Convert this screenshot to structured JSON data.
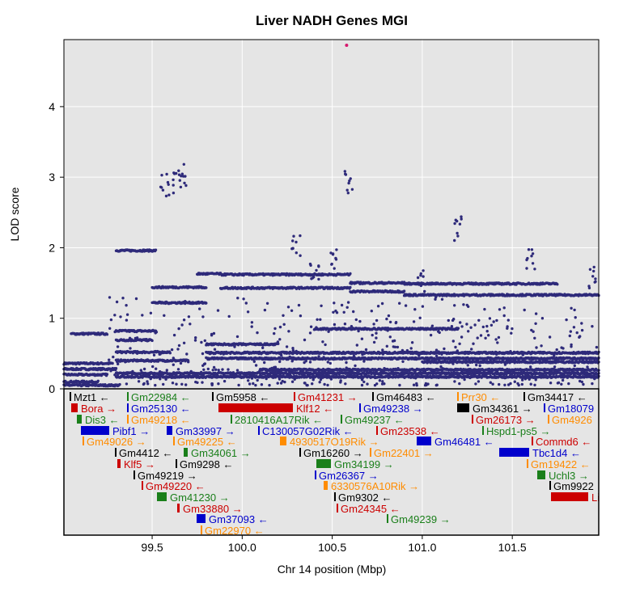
{
  "chart_data": {
    "type": "scatter",
    "title": "Liver NADH Genes MGI",
    "xlabel": "Chr 14 position (Mbp)",
    "ylabel": "LOD score",
    "xlim": [
      99.01,
      101.98
    ],
    "ylim": [
      0,
      4.95
    ],
    "x_ticks": [
      "99.5",
      "100.0",
      "100.5",
      "101.0",
      "101.5"
    ],
    "x_tick_values": [
      99.5,
      100.0,
      100.5,
      101.0,
      101.5
    ],
    "y_ticks": [
      "0",
      "1",
      "2",
      "3",
      "4"
    ],
    "y_tick_values": [
      0,
      1,
      2,
      3,
      4
    ],
    "grid": true,
    "point_color": "#2e2a7a",
    "peak_color": "#d6186e",
    "peak": {
      "x": 100.58,
      "y": 4.87
    },
    "bands": [
      {
        "from": 99.01,
        "to": 99.28,
        "y": 0.36
      },
      {
        "from": 99.01,
        "to": 99.3,
        "y": 0.28
      },
      {
        "from": 99.01,
        "to": 99.25,
        "y": 0.2
      },
      {
        "from": 99.01,
        "to": 99.2,
        "y": 0.1
      },
      {
        "from": 99.01,
        "to": 99.32,
        "y": 0.05
      },
      {
        "from": 99.05,
        "to": 99.25,
        "y": 0.78
      },
      {
        "from": 99.3,
        "to": 99.52,
        "y": 1.96
      },
      {
        "from": 99.3,
        "to": 99.52,
        "y": 0.82
      },
      {
        "from": 99.3,
        "to": 99.5,
        "y": 0.69
      },
      {
        "from": 99.3,
        "to": 99.6,
        "y": 0.52
      },
      {
        "from": 99.3,
        "to": 99.7,
        "y": 0.4
      },
      {
        "from": 99.3,
        "to": 101.98,
        "y": 0.22
      },
      {
        "from": 99.3,
        "to": 101.98,
        "y": 0.17
      },
      {
        "from": 99.5,
        "to": 99.8,
        "y": 1.44
      },
      {
        "from": 99.5,
        "to": 99.8,
        "y": 1.22
      },
      {
        "from": 99.75,
        "to": 99.88,
        "y": 1.63
      },
      {
        "from": 99.88,
        "to": 100.6,
        "y": 1.62
      },
      {
        "from": 99.88,
        "to": 100.6,
        "y": 1.43
      },
      {
        "from": 100.6,
        "to": 100.9,
        "y": 1.5
      },
      {
        "from": 100.9,
        "to": 101.75,
        "y": 1.49
      },
      {
        "from": 100.6,
        "to": 100.9,
        "y": 1.38
      },
      {
        "from": 100.9,
        "to": 101.98,
        "y": 1.33
      },
      {
        "from": 99.8,
        "to": 101.98,
        "y": 0.51
      },
      {
        "from": 99.8,
        "to": 101.98,
        "y": 0.43
      },
      {
        "from": 100.1,
        "to": 101.98,
        "y": 0.27
      },
      {
        "from": 100.4,
        "to": 101.2,
        "y": 0.85
      },
      {
        "from": 99.8,
        "to": 100.2,
        "y": 0.63
      },
      {
        "from": 101.0,
        "to": 101.98,
        "y": 0.38
      }
    ],
    "clusters": [
      {
        "x": 99.57,
        "y": 3.08
      },
      {
        "x": 99.63,
        "y": 3.1
      },
      {
        "x": 99.67,
        "y": 3.2
      },
      {
        "x": 100.59,
        "y": 3.09
      },
      {
        "x": 101.2,
        "y": 2.45
      },
      {
        "x": 100.3,
        "y": 2.2
      },
      {
        "x": 100.5,
        "y": 2.0
      },
      {
        "x": 100.4,
        "y": 1.8
      },
      {
        "x": 101.0,
        "y": 1.7
      },
      {
        "x": 101.6,
        "y": 2.0
      },
      {
        "x": 101.95,
        "y": 1.75
      }
    ]
  },
  "genes": [
    {
      "name": "Mzt1",
      "dir": "←",
      "color": "#000000"
    },
    {
      "name": "Gm22984",
      "dir": "←",
      "color": "#1a7f1a"
    },
    {
      "name": "Gm5958",
      "dir": "←",
      "color": "#000000"
    },
    {
      "name": "Gm41231",
      "dir": "→",
      "color": "#cc0000"
    },
    {
      "name": "Gm46483",
      "dir": "←",
      "color": "#000000"
    },
    {
      "name": "Prr30",
      "dir": "←",
      "color": "#ff8c00"
    },
    {
      "name": "Gm34417",
      "dir": "←",
      "color": "#000000"
    },
    {
      "name": "Bora",
      "dir": "→",
      "color": "#cc0000"
    },
    {
      "name": "Gm25130",
      "dir": "←",
      "color": "#0000cc"
    },
    {
      "name": "Klf12",
      "dir": "←",
      "color": "#cc0000"
    },
    {
      "name": "Gm49238",
      "dir": "→",
      "color": "#0000cc"
    },
    {
      "name": "Gm34361",
      "dir": "→",
      "color": "#000000"
    },
    {
      "name": "Gm18079",
      "dir": "",
      "color": "#0000cc"
    },
    {
      "name": "Dis3",
      "dir": "←",
      "color": "#1a7f1a"
    },
    {
      "name": "Gm49218",
      "dir": "←",
      "color": "#ff8c00"
    },
    {
      "name": "2810416A17Rik",
      "dir": "←",
      "color": "#1a7f1a"
    },
    {
      "name": "Gm49237",
      "dir": "←",
      "color": "#1a7f1a"
    },
    {
      "name": "Gm26173",
      "dir": "→",
      "color": "#cc0000"
    },
    {
      "name": "Gm4926",
      "dir": "",
      "color": "#ff8c00"
    },
    {
      "name": "Pibf1",
      "dir": "→",
      "color": "#0000cc"
    },
    {
      "name": "Gm33997",
      "dir": "→",
      "color": "#0000cc"
    },
    {
      "name": "C130057G02Rik",
      "dir": "←",
      "color": "#0000cc"
    },
    {
      "name": "Gm23538",
      "dir": "←",
      "color": "#cc0000"
    },
    {
      "name": "Hspd1-ps5",
      "dir": "→",
      "color": "#1a7f1a"
    },
    {
      "name": "Gm49026",
      "dir": "→",
      "color": "#ff8c00"
    },
    {
      "name": "Gm49225",
      "dir": "←",
      "color": "#ff8c00"
    },
    {
      "name": "4930517O19Rik",
      "dir": "→",
      "color": "#ff8c00"
    },
    {
      "name": "Gm46481",
      "dir": "←",
      "color": "#0000cc"
    },
    {
      "name": "Commd6",
      "dir": "←",
      "color": "#cc0000"
    },
    {
      "name": "Gm4412",
      "dir": "←",
      "color": "#000000"
    },
    {
      "name": "Gm34061",
      "dir": "→",
      "color": "#1a7f1a"
    },
    {
      "name": "Gm16260",
      "dir": "→",
      "color": "#000000"
    },
    {
      "name": "Gm22401",
      "dir": "→",
      "color": "#ff8c00"
    },
    {
      "name": "Tbc1d4",
      "dir": "←",
      "color": "#0000cc"
    },
    {
      "name": "Klf5",
      "dir": "→",
      "color": "#cc0000"
    },
    {
      "name": "Gm9298",
      "dir": "←",
      "color": "#000000"
    },
    {
      "name": "Gm34199",
      "dir": "→",
      "color": "#1a7f1a"
    },
    {
      "name": "Gm19422",
      "dir": "←",
      "color": "#ff8c00"
    },
    {
      "name": "Gm49219",
      "dir": "→",
      "color": "#000000"
    },
    {
      "name": "Gm26367",
      "dir": "→",
      "color": "#0000cc"
    },
    {
      "name": "Uchl3",
      "dir": "→",
      "color": "#1a7f1a"
    },
    {
      "name": "Gm49220",
      "dir": "←",
      "color": "#cc0000"
    },
    {
      "name": "6330576A10Rik",
      "dir": "→",
      "color": "#ff8c00"
    },
    {
      "name": "Gm9922",
      "dir": "",
      "color": "#000000"
    },
    {
      "name": "Gm41230",
      "dir": "→",
      "color": "#1a7f1a"
    },
    {
      "name": "Gm9302",
      "dir": "←",
      "color": "#000000"
    },
    {
      "name": "Gm33880",
      "dir": "→",
      "color": "#cc0000"
    },
    {
      "name": "Gm24345",
      "dir": "←",
      "color": "#cc0000"
    },
    {
      "name": "Gm37093",
      "dir": "←",
      "color": "#0000cc"
    },
    {
      "name": "Gm49239",
      "dir": "→",
      "color": "#1a7f1a"
    },
    {
      "name": "Gm22970",
      "dir": "←",
      "color": "#ff8c00"
    },
    {
      "name": "Li",
      "dir": "",
      "color": "#cc0000"
    }
  ]
}
